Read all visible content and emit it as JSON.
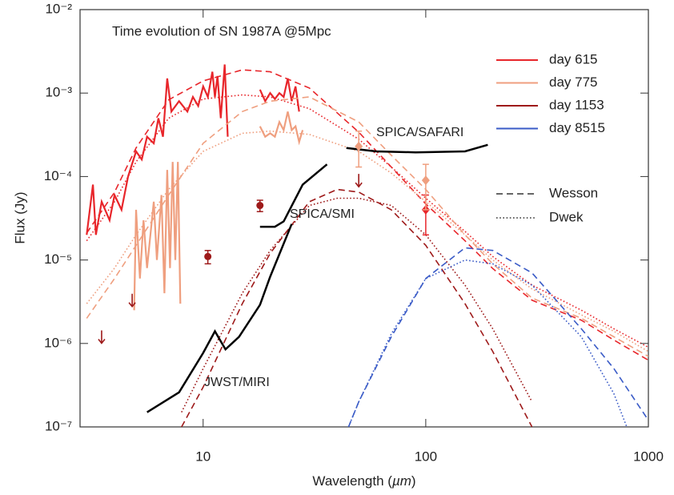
{
  "chart_data": {
    "type": "line",
    "title": "Time evolution of SN 1987A @5Mpc",
    "x_label": "Wavelength (",
    "x_label_unit": "µm",
    "x_label_end": ")",
    "y_label": "Flux (Jy)",
    "x_scale": "log",
    "y_scale": "log",
    "xlim": [
      2.8,
      1000
    ],
    "xticks": [
      10,
      100,
      1000
    ],
    "ylim": [
      1e-07,
      0.01
    ],
    "yticks": [
      {
        "value": 1e-07,
        "label": "10⁻⁷"
      },
      {
        "value": 1e-06,
        "label": "10⁻⁶"
      },
      {
        "value": 1e-05,
        "label": "10⁻⁵"
      },
      {
        "value": 0.0001,
        "label": "10⁻⁴"
      },
      {
        "value": 0.001,
        "label": "10⁻³"
      },
      {
        "value": 0.01,
        "label": "10⁻²"
      }
    ],
    "legend": "upper right",
    "models": [
      {
        "name": "Wesson",
        "dash": "dashed"
      },
      {
        "name": "Dwek",
        "dash": "dotted"
      }
    ],
    "series": [
      {
        "name": "day 615",
        "color": "#e8262b",
        "x": [
          3,
          3.2,
          3.3,
          3.5,
          3.8,
          4,
          4.3,
          4.6,
          5,
          5.3,
          5.6,
          6,
          6.3,
          6.6,
          6.9,
          7.2,
          7.8,
          8.5,
          9,
          9.5,
          10,
          10.5,
          11,
          11.3,
          11.6,
          12,
          12.5,
          12.9,
          null,
          18,
          19,
          20,
          21,
          22,
          23,
          24,
          25,
          26,
          27
        ],
        "values": [
          2e-05,
          8e-05,
          2e-05,
          5e-05,
          3e-05,
          6e-05,
          4e-05,
          0.0001,
          0.0002,
          0.00016,
          0.0003,
          0.00025,
          0.0005,
          0.0003,
          0.0015,
          0.0006,
          0.0008,
          0.0006,
          0.0009,
          0.0007,
          0.0012,
          0.0009,
          0.0018,
          0.0009,
          0.0016,
          0.0005,
          0.0022,
          0.0003,
          null,
          0.0011,
          0.0008,
          0.001,
          0.00085,
          0.001,
          0.0009,
          0.0015,
          0.0008,
          0.0012,
          0.0006
        ]
      },
      {
        "name": "day 775",
        "color": "#ef9f7f",
        "x": [
          4.9,
          5,
          5.2,
          5.4,
          5.6,
          6,
          6.2,
          6.5,
          6.7,
          6.9,
          7.1,
          7.3,
          7.5,
          7.7,
          7.9,
          null,
          18,
          19,
          20,
          21,
          22,
          23,
          24,
          25,
          26,
          27,
          28
        ],
        "values": [
          2.5e-06,
          4e-05,
          6e-06,
          3e-05,
          8e-06,
          5e-05,
          1e-05,
          6e-05,
          4e-06,
          0.00012,
          8e-06,
          0.00015,
          1e-05,
          0.00015,
          3e-06,
          null,
          0.0004,
          0.0003,
          0.00033,
          0.0003,
          0.00045,
          0.00036,
          0.0006,
          0.00036,
          0.0004,
          0.00026,
          0.00036
        ]
      },
      {
        "name": "day 615",
        "model": "Wesson",
        "color": "#e8262b",
        "x": [
          3,
          4,
          5,
          7,
          10,
          15,
          20,
          30,
          50,
          70,
          100,
          150,
          200,
          300,
          500,
          700,
          1000
        ],
        "values": [
          2.1e-05,
          6.5e-05,
          0.00022,
          0.00083,
          0.0014,
          0.0019,
          0.0018,
          0.00115,
          0.00034,
          0.00013,
          4.7e-05,
          1.7e-05,
          7.9e-06,
          3.3e-06,
          1.9e-06,
          1.1e-06,
          6.3e-07
        ]
      },
      {
        "name": "day 615",
        "model": "Dwek",
        "color": "#e8262b",
        "x": [
          3,
          4,
          5,
          7,
          10,
          15,
          20,
          30,
          50,
          70,
          100,
          150,
          200,
          300,
          500,
          700,
          1000
        ],
        "values": [
          1.7e-05,
          5e-05,
          0.00015,
          0.0005,
          0.00085,
          0.00095,
          0.0009,
          0.00065,
          0.00028,
          0.00013,
          5.5e-05,
          2.2e-05,
          1.1e-05,
          5e-06,
          2.5e-06,
          1.5e-06,
          9e-07
        ]
      },
      {
        "name": "day 775",
        "model": "Wesson",
        "color": "#ef9f7f",
        "x": [
          3,
          4,
          5,
          7,
          10,
          15,
          20,
          30,
          50,
          70,
          100,
          150,
          200,
          300,
          500,
          700,
          1000
        ],
        "values": [
          2e-06,
          6e-06,
          1.5e-05,
          6e-05,
          0.00025,
          0.0006,
          0.0008,
          0.0009,
          0.00045,
          0.00018,
          7e-05,
          2e-05,
          9e-06,
          3.5e-06,
          2e-06,
          1.2e-06,
          7e-07
        ]
      },
      {
        "name": "day 775",
        "model": "Dwek",
        "color": "#ef9f7f",
        "x": [
          3,
          4,
          5,
          7,
          10,
          15,
          20,
          30,
          50,
          70,
          100,
          150,
          200,
          300,
          500,
          700,
          1000
        ],
        "values": [
          3e-06,
          8e-06,
          2e-05,
          7e-05,
          0.0002,
          0.00033,
          0.00035,
          0.00032,
          0.0002,
          0.00011,
          5e-05,
          2e-05,
          1e-05,
          4.5e-06,
          2.2e-06,
          1.4e-06,
          8e-07
        ]
      },
      {
        "name": "day 1153",
        "model": "Wesson",
        "color": "#9e1a1a",
        "x": [
          8,
          10,
          15,
          20,
          30,
          40,
          50,
          70,
          100,
          150,
          200,
          300
        ],
        "values": [
          1e-07,
          3e-07,
          3e-06,
          1.2e-05,
          5e-05,
          7e-05,
          6.5e-05,
          4e-05,
          1.5e-05,
          3e-06,
          8e-07,
          1e-07
        ]
      },
      {
        "name": "day 1153",
        "model": "Dwek",
        "color": "#9e1a1a",
        "x": [
          8,
          10,
          15,
          20,
          30,
          40,
          50,
          70,
          100,
          150,
          200,
          300
        ],
        "values": [
          1.5e-07,
          5e-07,
          4e-06,
          1.3e-05,
          4.5e-05,
          5.5e-05,
          5.5e-05,
          4.5e-05,
          2e-05,
          5e-06,
          1.5e-06,
          2e-07
        ]
      },
      {
        "name": "day 8515",
        "model": "Wesson",
        "color": "#3a5bc7",
        "x": [
          45,
          50,
          70,
          100,
          150,
          200,
          300,
          500,
          700,
          1000
        ],
        "values": [
          1e-07,
          2e-07,
          1.2e-06,
          6e-06,
          1.4e-05,
          1.3e-05,
          7e-06,
          1.5e-06,
          5e-07,
          1.2e-07
        ]
      },
      {
        "name": "day 8515",
        "model": "Dwek",
        "color": "#3a5bc7",
        "x": [
          45,
          50,
          70,
          100,
          150,
          200,
          300,
          500,
          700,
          800
        ],
        "values": [
          1e-07,
          2e-07,
          1.3e-06,
          6e-06,
          1e-05,
          9e-06,
          5e-06,
          1.2e-06,
          2.5e-07,
          1e-07
        ]
      }
    ],
    "instrument_color": "#000000",
    "instruments": [
      {
        "name": "SPICA/SAFARI",
        "x": [
          44,
          60,
          90,
          150,
          190
        ],
        "values": [
          0.00022,
          0.0002,
          0.000195,
          0.0002,
          0.00024
        ]
      },
      {
        "name": "SPICA/SMI",
        "x": [
          18,
          21,
          23,
          28,
          36
        ],
        "values": [
          2.5e-05,
          2.5e-05,
          2.9e-05,
          8e-05,
          0.00014
        ]
      },
      {
        "name": "JWST/MIRI",
        "x": [
          5.6,
          7.8,
          10,
          11.3,
          12.6,
          14.5,
          18,
          20,
          25
        ],
        "values": [
          1.5e-07,
          2.6e-07,
          7.7e-07,
          1.4e-06,
          8.5e-07,
          1.2e-06,
          2.9e-06,
          6.3e-06,
          2.7e-05
        ]
      }
    ],
    "points": [
      {
        "name": "day 615",
        "color": "#e8262b",
        "marker": "diamond",
        "x": [
          100
        ],
        "values": [
          4e-05
        ],
        "low": [
          2e-05
        ],
        "high": [
          6e-05
        ]
      },
      {
        "name": "day 775",
        "color": "#ef9f7f",
        "marker": "diamond",
        "x": [
          50,
          100
        ],
        "values": [
          0.00023,
          9e-05
        ],
        "low": [
          0.00013,
          4e-05
        ],
        "high": [
          0.00035,
          0.00014
        ]
      },
      {
        "name": "day 1153",
        "color": "#9e1a1a",
        "marker": "circle",
        "x": [
          10.5,
          18
        ],
        "values": [
          1.1e-05,
          4.5e-05
        ],
        "low": [
          9e-06,
          3.8e-05
        ],
        "high": [
          1.3e-05,
          5.2e-05
        ]
      }
    ],
    "upper_limits": {
      "name": "day 1153",
      "color": "#9e1a1a",
      "x": [
        3.5,
        4.8,
        50
      ],
      "values": [
        1.2e-06,
        3.3e-06,
        9e-05
      ]
    }
  }
}
